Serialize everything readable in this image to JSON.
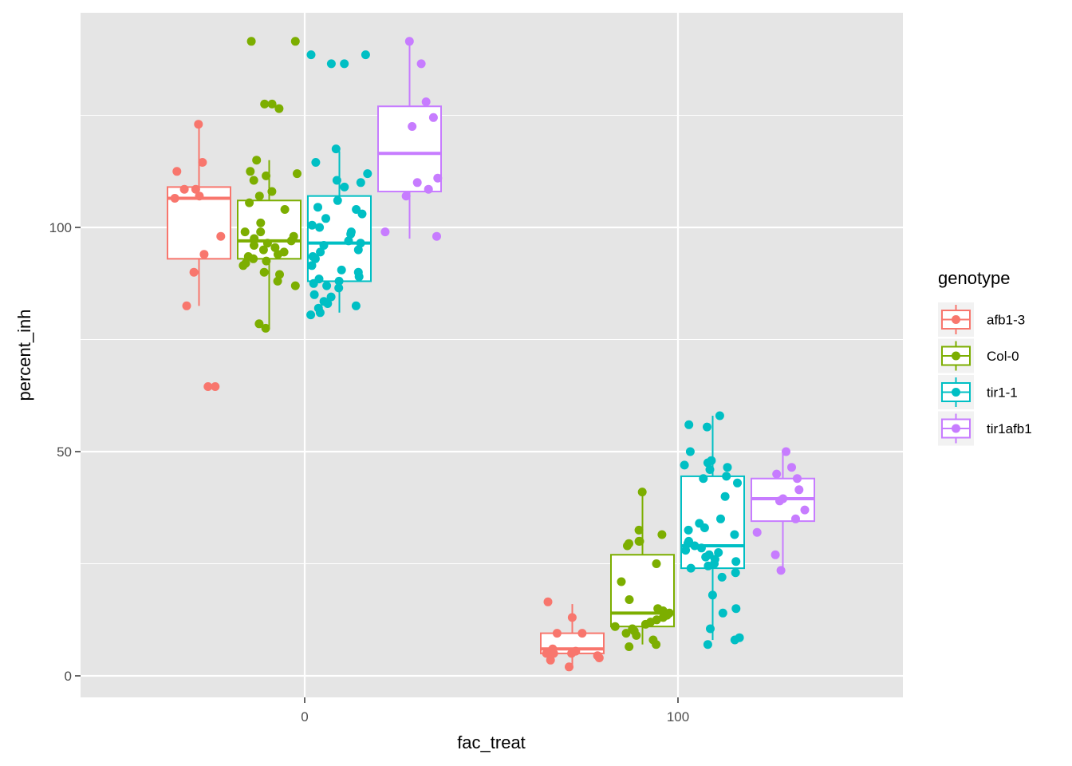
{
  "chart_data": {
    "type": "boxplot",
    "xlabel": "fac_treat",
    "ylabel": "percent_inh",
    "categories": [
      "0",
      "100"
    ],
    "y_ticks": [
      0,
      50,
      100
    ],
    "ylim": [
      -5,
      147
    ],
    "grid": true,
    "legend": {
      "title": "genotype",
      "position": "right",
      "items": [
        "afb1-3",
        "Col-0",
        "tir1-1",
        "tir1afb1"
      ]
    },
    "colors": {
      "afb1-3": "#F8766D",
      "Col-0": "#7CAE00",
      "tir1-1": "#00BFC4",
      "tir1afb1": "#C77CFF",
      "panel_background": "#E5E5E5",
      "grid": "#FFFFFF"
    },
    "series": [
      {
        "name": "afb1-3",
        "boxes": [
          {
            "treat": "0",
            "whisker_low": 82.5,
            "q1": 93.0,
            "median": 106.5,
            "q3": 109.0,
            "whisker_high": 122.5,
            "points": [
              123,
              114.5,
              112.5,
              108.5,
              108.5,
              107,
              106.5,
              98,
              94,
              90,
              82.5,
              64.5,
              64.5
            ]
          },
          {
            "treat": "100",
            "whisker_low": 2.0,
            "q1": 5.0,
            "median": 6.0,
            "q3": 9.5,
            "whisker_high": 16.0,
            "points": [
              16.5,
              13,
              9.5,
              9.5,
              6,
              5.5,
              5,
              5,
              5,
              4.5,
              4,
              3.5,
              2
            ]
          }
        ]
      },
      {
        "name": "Col-0",
        "boxes": [
          {
            "treat": "0",
            "whisker_low": 77.5,
            "q1": 93.0,
            "median": 97.0,
            "q3": 106.0,
            "whisker_high": 115.0,
            "points": [
              141.5,
              141.5,
              127.5,
              127.5,
              126.5,
              115,
              112.5,
              112,
              111.5,
              110.5,
              108,
              107,
              105.5,
              104,
              101,
              99,
              99,
              98,
              97.5,
              97,
              96.5,
              96,
              95.5,
              95,
              94.5,
              94,
              93.5,
              93,
              92.5,
              92,
              91.5,
              90,
              89.5,
              88,
              87,
              78.5,
              77.5
            ]
          },
          {
            "treat": "100",
            "whisker_low": 7.0,
            "q1": 11.0,
            "median": 14.0,
            "q3": 27.0,
            "whisker_high": 41.0,
            "points": [
              41,
              32.5,
              31.5,
              30,
              30,
              29.5,
              29,
              25,
              21,
              17,
              15,
              14.5,
              14,
              13.5,
              13,
              12.5,
              12,
              11.5,
              11,
              10.5,
              10,
              9.5,
              9,
              8,
              7,
              6.5
            ]
          }
        ]
      },
      {
        "name": "tir1-1",
        "boxes": [
          {
            "treat": "0",
            "whisker_low": 81.0,
            "q1": 88.0,
            "median": 96.5,
            "q3": 107.0,
            "whisker_high": 117.0,
            "points": [
              138.5,
              138.5,
              136.5,
              136.5,
              117.5,
              114.5,
              112,
              110.5,
              110,
              109,
              106,
              104.5,
              104,
              103,
              102,
              100.5,
              100,
              99,
              98.5,
              97,
              96.5,
              96,
              95,
              94.5,
              93.5,
              93,
              91.5,
              90.5,
              90,
              89,
              88.5,
              88,
              87.5,
              87,
              86.5,
              85,
              84.5,
              83.5,
              83,
              82.5,
              82,
              81,
              80.5
            ]
          },
          {
            "treat": "100",
            "whisker_low": 8.0,
            "q1": 24.0,
            "median": 29.0,
            "q3": 44.5,
            "whisker_high": 58.0,
            "points": [
              58,
              56,
              55.5,
              50,
              48,
              47.5,
              47,
              46.5,
              46,
              44.5,
              44,
              43,
              40,
              35,
              34,
              33,
              32.5,
              31.5,
              30,
              29.5,
              29,
              28.5,
              28,
              27.5,
              27,
              26.5,
              26,
              25.5,
              25,
              24.5,
              24,
              23,
              22,
              18,
              15,
              14,
              10.5,
              8.5,
              8,
              7
            ]
          }
        ]
      },
      {
        "name": "tir1afb1",
        "boxes": [
          {
            "treat": "0",
            "whisker_low": 97.5,
            "q1": 108.0,
            "median": 116.5,
            "q3": 127.0,
            "whisker_high": 141.0,
            "points": [
              141.5,
              136.5,
              128,
              124.5,
              122.5,
              111,
              110,
              108.5,
              107,
              99,
              98
            ]
          },
          {
            "treat": "100",
            "whisker_low": 23.0,
            "q1": 34.5,
            "median": 39.5,
            "q3": 44.0,
            "whisker_high": 50.0,
            "points": [
              50,
              46.5,
              45,
              44,
              41.5,
              39.5,
              39,
              37,
              35,
              32,
              27,
              23.5
            ]
          }
        ]
      }
    ]
  }
}
